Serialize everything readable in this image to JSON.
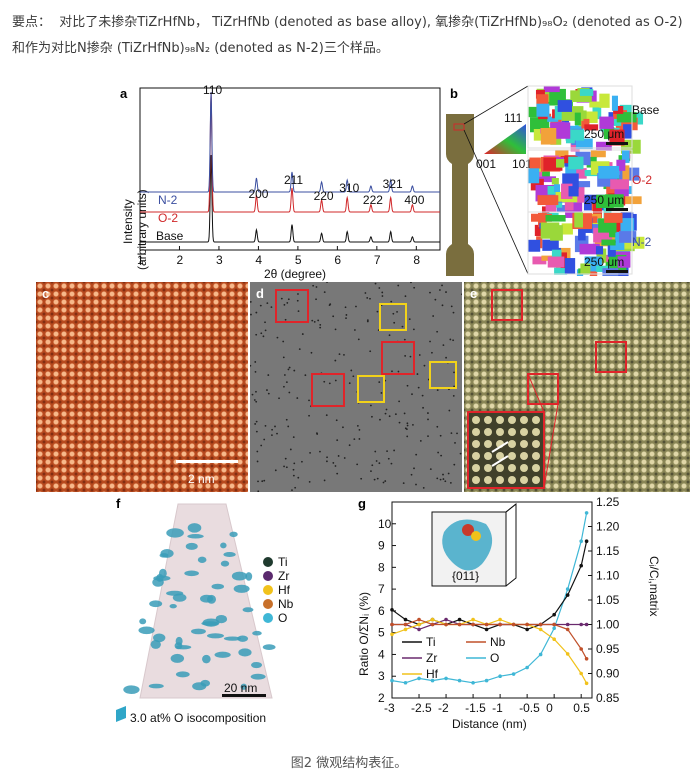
{
  "intro": {
    "prefix": "要点：",
    "text": "对比了未掺杂TiZrHfNb， TiZrHfNb (denoted as base alloy), 氧掺杂(TiZrHfNb)₉₈O₂ (denoted as O-2) 和作为对比N掺杂 (TiZrHfNb)₉₈N₂ (denoted as N-2)三个样品。"
  },
  "caption": "图2 微观结构表征。",
  "panels": {
    "a": {
      "label": "a",
      "ylabel_line1": "Intensity",
      "ylabel_line2": "(arbitrary units)",
      "xlabel": "2θ (degree)",
      "xticks": [
        "1",
        "2",
        "3",
        "4",
        "5",
        "6",
        "7",
        "8"
      ],
      "peaks": [
        "110",
        "200",
        "211",
        "220",
        "310",
        "222",
        "321",
        "400"
      ],
      "series": [
        {
          "name": "N-2",
          "color": "#3b4fa0"
        },
        {
          "name": "O-2",
          "color": "#d0282a"
        },
        {
          "name": "Base",
          "color": "#111111"
        }
      ]
    },
    "b": {
      "label": "b",
      "ipf": {
        "top": "111",
        "left": "001",
        "right": "101"
      },
      "maps": [
        {
          "name": "Base",
          "color": "#111111",
          "scale": "250 μm"
        },
        {
          "name": "O-2",
          "color": "#d0282a",
          "scale": "250 μm"
        },
        {
          "name": "N-2",
          "color": "#3b4fa0",
          "scale": "250 μm"
        }
      ]
    },
    "c": {
      "label": "c",
      "scale": "2 nm"
    },
    "d": {
      "label": "d"
    },
    "e": {
      "label": "e"
    },
    "f": {
      "label": "f",
      "legend": [
        {
          "name": "Ti",
          "color": "#1f3a2e"
        },
        {
          "name": "Zr",
          "color": "#5b2a6e"
        },
        {
          "name": "Hf",
          "color": "#f1c21b"
        },
        {
          "name": "Nb",
          "color": "#c8702a"
        },
        {
          "name": "O",
          "color": "#3fb7d6"
        }
      ],
      "scale": "20 nm",
      "iso": "3.0 at% O isocomposition"
    },
    "g": {
      "label": "g",
      "ylabel_left": "Ratio O/ΣNᵢ (%)",
      "ylabel_right": "Cᵢ/Cᵢ,matrix",
      "xlabel": "Distance (nm)",
      "xticks": [
        "-3",
        "-2.5",
        "-2",
        "-1.5",
        "-1",
        "-0.5",
        "0",
        "0.5"
      ],
      "yticks_left": [
        "2",
        "3",
        "4",
        "5",
        "6",
        "7",
        "8",
        "9",
        "10"
      ],
      "yticks_right": [
        "0.85",
        "0.90",
        "0.95",
        "1.00",
        "1.05",
        "1.10",
        "1.15",
        "1.20",
        "1.25"
      ],
      "inset_label": "{011}",
      "legend": [
        {
          "name": "Ti",
          "color": "#111111"
        },
        {
          "name": "Nb",
          "color": "#c0502a"
        },
        {
          "name": "Zr",
          "color": "#6a2a6e"
        },
        {
          "name": "O",
          "color": "#3fb7d6"
        },
        {
          "name": "Hf",
          "color": "#f1c21b"
        }
      ]
    }
  },
  "chart_data": {
    "type": "line",
    "title": "",
    "xlabel": "Distance (nm)",
    "ylabel": "Ratio O/ΣNᵢ (%)",
    "x": [
      -3,
      -2.75,
      -2.5,
      -2.25,
      -2,
      -1.75,
      -1.5,
      -1.25,
      -1,
      -0.75,
      -0.5,
      -0.25,
      0,
      0.25,
      0.5,
      0.6
    ],
    "xlim": [
      -3,
      0.7
    ],
    "ylim": [
      2,
      11
    ],
    "y2lim": [
      0.85,
      1.25
    ],
    "series": [
      {
        "name": "O",
        "axis": "left",
        "values": [
          2.8,
          2.7,
          2.9,
          2.8,
          2.9,
          2.8,
          2.7,
          2.8,
          3.0,
          3.1,
          3.4,
          4.0,
          5.2,
          7.0,
          9.2,
          10.5
        ]
      },
      {
        "name": "Ti",
        "axis": "right",
        "values": [
          1.03,
          1.01,
          1.0,
          1.01,
          1.0,
          1.01,
          1.0,
          0.99,
          1.0,
          1.0,
          0.99,
          1.0,
          1.02,
          1.06,
          1.12,
          1.17
        ]
      },
      {
        "name": "Zr",
        "axis": "right",
        "values": [
          1.0,
          1.0,
          0.99,
          1.0,
          1.01,
          1.0,
          1.0,
          1.0,
          1.0,
          1.0,
          1.0,
          1.0,
          1.0,
          1.0,
          1.0,
          1.0
        ]
      },
      {
        "name": "Hf",
        "axis": "right",
        "values": [
          0.98,
          0.99,
          1.0,
          1.01,
          1.0,
          1.0,
          1.01,
          1.0,
          1.01,
          1.0,
          1.0,
          0.99,
          0.97,
          0.94,
          0.9,
          0.88
        ]
      },
      {
        "name": "Nb",
        "axis": "right",
        "values": [
          1.0,
          1.0,
          1.01,
          1.0,
          1.0,
          1.0,
          1.0,
          1.0,
          1.0,
          1.0,
          1.0,
          1.0,
          1.0,
          0.99,
          0.95,
          0.93
        ]
      }
    ]
  }
}
